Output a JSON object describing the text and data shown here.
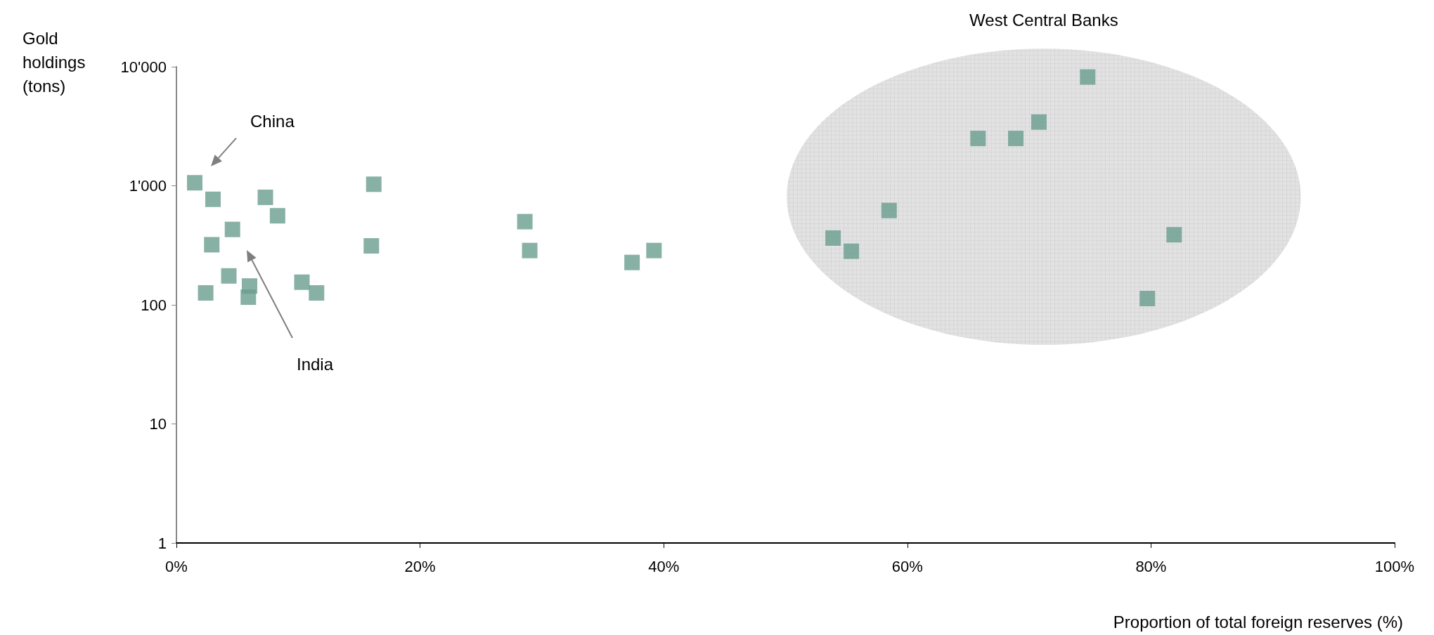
{
  "chart_data": {
    "type": "scatter",
    "xlabel": "Proportion of total foreign reserves (%)",
    "ylabel": "Gold holdings (tons)",
    "annotations": [
      "West Central Banks",
      "China",
      "India"
    ],
    "x": [
      1.5,
      3.0,
      7.3,
      8.3,
      4.6,
      2.9,
      4.3,
      2.4,
      6.0,
      5.9,
      10.3,
      11.5,
      16.2,
      16.0,
      28.6,
      29.0,
      37.4,
      39.2,
      74.8,
      70.8,
      65.8,
      68.9,
      58.5,
      53.9,
      55.4,
      81.9,
      79.7
    ],
    "values": [
      1060,
      770,
      800,
      560,
      430,
      320,
      175,
      126,
      144,
      116,
      155,
      126,
      1030,
      313,
      500,
      286,
      227,
      286,
      8200,
      3430,
      2500,
      2500,
      620,
      364,
      282,
      388,
      113
    ],
    "color": "#6a9e8e",
    "marker": "square",
    "xlim": [
      0,
      100
    ],
    "xticks": [
      {
        "value": 0,
        "label": "0%"
      },
      {
        "value": 20,
        "label": "20%"
      },
      {
        "value": 40,
        "label": "40%"
      },
      {
        "value": 60,
        "label": "60%"
      },
      {
        "value": 80,
        "label": "80%"
      },
      {
        "value": 100,
        "label": "100%"
      }
    ],
    "ylim": [
      1,
      10000
    ],
    "yticks": [
      1,
      10,
      100,
      {
        "value": 1000,
        "label": "1'000"
      },
      {
        "value": 10000,
        "label": "10'000"
      }
    ],
    "log": "y",
    "grid": false
  }
}
